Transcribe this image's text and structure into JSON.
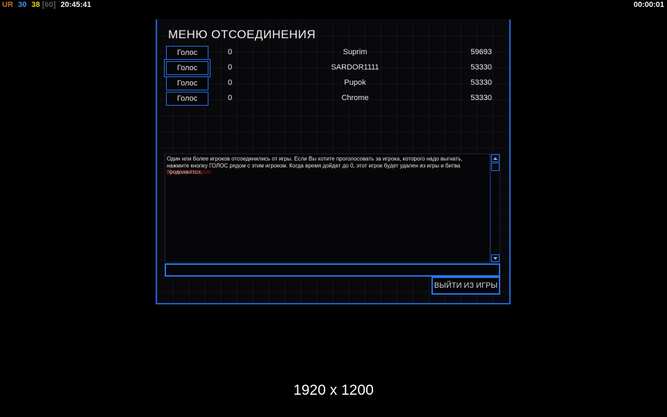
{
  "status_bar": {
    "ur_label": "UR",
    "value_blue": "30",
    "value_yellow": "38",
    "value_bracket": "[60]",
    "clock": "20:45:41",
    "match_timer": "00:00:01"
  },
  "dialog": {
    "title": "МЕНЮ ОТСОЕДИНЕНИЯ",
    "vote_button_label": "Голос",
    "players": [
      {
        "votes": "0",
        "name": "Suprim",
        "score": "59693"
      },
      {
        "votes": "0",
        "name": "SARDOR1111",
        "score": "53330"
      },
      {
        "votes": "0",
        "name": "Pupok",
        "score": "53330"
      },
      {
        "votes": "0",
        "name": "Chrome",
        "score": "53330"
      }
    ],
    "message": "Один или более игроков отсоединились от игры. Если Вы хотите проголосовать за игрока, которого надо выгнать, нажмите кнопку ГОЛОС рядом с этим игроком. Когда время дойдет до 0, этот игрок будет удален из игры и битва продолжится.",
    "chat_line": "[Suprim] 5k idyom",
    "chat_input_value": "",
    "exit_button_label": "ВЫЙТИ ИЗ ИГРЫ"
  },
  "footer": {
    "resolution": "1920 x 1200"
  },
  "colors": {
    "accent_blue": "#2774ea",
    "chat_red": "#a81c10",
    "status_orange": "#c07828",
    "status_blue": "#4596f0",
    "status_yellow": "#e8d820"
  }
}
